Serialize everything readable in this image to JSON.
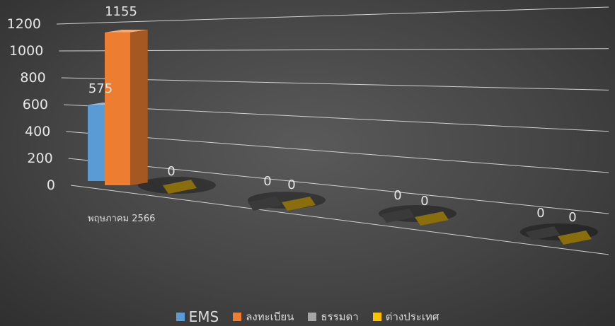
{
  "chart_data": {
    "type": "bar",
    "style": "3d-clustered-column",
    "categories": [
      "พฤษภาคม 2566",
      "",
      "",
      ""
    ],
    "series": [
      {
        "name": "EMS",
        "color": "#5b9bd5",
        "values": [
          575,
          null,
          0,
          0
        ]
      },
      {
        "name": "ลงทะเบียน",
        "color": "#ed7d31",
        "values": [
          1155,
          0,
          0,
          0
        ]
      },
      {
        "name": "ธรรมดา",
        "color": "#a5a5a5",
        "values": [
          null,
          null,
          null,
          null
        ]
      },
      {
        "name": "ต่างประเทศ",
        "color": "#ffc000",
        "values": [
          null,
          null,
          null,
          null
        ]
      }
    ],
    "data_labels": [
      {
        "series": 0,
        "category": 0,
        "text": "575"
      },
      {
        "series": 1,
        "category": 0,
        "text": "1155"
      },
      {
        "series": 1,
        "category": 1,
        "text": "0"
      },
      {
        "series": 0,
        "category": 2,
        "text": "0"
      },
      {
        "series": 1,
        "category": 2,
        "text": "0"
      },
      {
        "series": 0,
        "category": 3,
        "text": "0"
      },
      {
        "series": 1,
        "category": 3,
        "text": "0"
      },
      {
        "series": 0,
        "category": 4,
        "text": "0"
      },
      {
        "series": 1,
        "category": 4,
        "text": "0"
      }
    ],
    "y_ticks": [
      "0",
      "200",
      "400",
      "600",
      "800",
      "1000",
      "1200"
    ],
    "ylim": [
      0,
      1200
    ],
    "grid": true,
    "legend_position": "bottom",
    "title": "",
    "xlabel": "",
    "ylabel": ""
  }
}
